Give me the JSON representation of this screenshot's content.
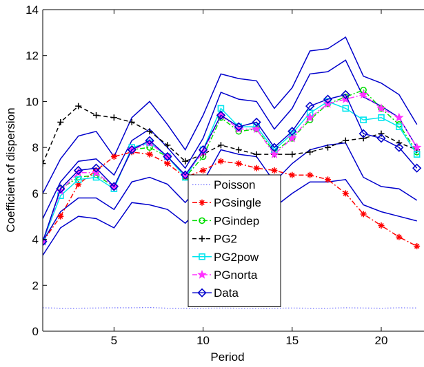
{
  "chart_data": {
    "type": "line",
    "title": "",
    "xlabel": "Period",
    "ylabel": "Coefficient of dispersion",
    "xlim": [
      1,
      22.4
    ],
    "ylim": [
      0,
      14
    ],
    "x_ticks": [
      5,
      10,
      15,
      20
    ],
    "y_ticks": [
      0,
      2,
      4,
      6,
      8,
      10,
      12,
      14
    ],
    "grid": false,
    "legend_position": "bottom-center",
    "x": [
      1,
      2,
      3,
      4,
      5,
      6,
      7,
      8,
      9,
      10,
      11,
      12,
      13,
      14,
      15,
      16,
      17,
      18,
      19,
      20,
      21,
      22
    ],
    "data_band": {
      "outer_upper": [
        6.0,
        7.5,
        8.5,
        8.7,
        7.6,
        9.3,
        10.0,
        9.0,
        7.9,
        9.4,
        11.2,
        11.0,
        10.9,
        9.7,
        10.6,
        12.2,
        12.3,
        12.8,
        11.1,
        10.8,
        10.3,
        9.0
      ],
      "inner_upper": [
        4.9,
        6.5,
        7.4,
        7.5,
        6.8,
        8.3,
        8.8,
        8.0,
        7.1,
        8.4,
        10.4,
        10.1,
        10.0,
        8.8,
        9.7,
        11.2,
        11.3,
        11.8,
        10.2,
        9.8,
        9.3,
        8.0
      ],
      "inner_lower": [
        3.9,
        5.2,
        5.8,
        5.8,
        5.3,
        6.5,
        6.7,
        6.4,
        5.6,
        6.5,
        7.9,
        7.7,
        7.6,
        6.5,
        7.3,
        7.9,
        8.1,
        8.2,
        6.7,
        6.3,
        6.2,
        5.7
      ],
      "outer_lower": [
        3.3,
        4.5,
        5.0,
        4.9,
        4.5,
        5.6,
        5.5,
        5.3,
        4.7,
        5.5,
        6.8,
        6.7,
        6.4,
        5.4,
        6.0,
        6.5,
        6.5,
        6.6,
        5.5,
        5.2,
        5.0,
        4.8
      ],
      "color": "#0000cc"
    },
    "series": [
      {
        "name": "Poisson",
        "color": "#6a6aff",
        "dash": "dotted",
        "marker": "none",
        "values": [
          1.02,
          1.0,
          1.0,
          1.01,
          1.02,
          1.02,
          1.03,
          1.0,
          1.0,
          1.0,
          1.01,
          1.0,
          1.0,
          1.0,
          1.01,
          1.0,
          1.0,
          1.02,
          1.01,
          1.0,
          1.02,
          1.01
        ]
      },
      {
        "name": "PGsingle",
        "color": "#ff0000",
        "dash": "dashdot",
        "marker": "asterisk",
        "values": [
          3.9,
          5.0,
          6.4,
          7.0,
          7.6,
          7.8,
          7.7,
          7.3,
          6.7,
          7.0,
          7.4,
          7.3,
          7.1,
          7.0,
          6.8,
          6.8,
          6.6,
          6.0,
          5.1,
          4.6,
          4.1,
          3.7
        ]
      },
      {
        "name": "PGindep",
        "color": "#00dd00",
        "dash": "dashdot",
        "marker": "circle",
        "values": [
          3.9,
          6.2,
          6.7,
          6.8,
          6.3,
          7.9,
          8.0,
          7.6,
          6.7,
          7.6,
          9.3,
          8.7,
          8.8,
          7.8,
          8.4,
          9.2,
          9.9,
          10.2,
          10.5,
          9.7,
          9.0,
          7.8
        ]
      },
      {
        "name": "PG2",
        "color": "#000000",
        "dash": "dashed",
        "marker": "plus",
        "values": [
          7.3,
          9.1,
          9.8,
          9.4,
          9.3,
          9.1,
          8.7,
          8.1,
          7.4,
          7.7,
          8.1,
          7.9,
          7.7,
          7.7,
          7.7,
          7.8,
          8.0,
          8.3,
          8.4,
          8.6,
          8.2,
          7.9
        ]
      },
      {
        "name": "PG2pow",
        "color": "#00e5ee",
        "dash": "none",
        "marker": "square",
        "values": [
          3.9,
          5.9,
          6.6,
          6.7,
          6.2,
          8.0,
          8.2,
          7.6,
          6.7,
          7.9,
          9.7,
          8.9,
          8.9,
          7.9,
          8.6,
          9.5,
          10.0,
          9.7,
          9.2,
          9.3,
          8.9,
          7.7
        ]
      },
      {
        "name": "PGnorta",
        "color": "#ff33ff",
        "dash": "dashdot",
        "marker": "star",
        "values": [
          3.9,
          6.1,
          6.9,
          6.9,
          6.3,
          7.9,
          8.2,
          7.6,
          6.8,
          7.8,
          9.4,
          8.8,
          8.8,
          7.7,
          8.4,
          9.3,
          9.9,
          10.1,
          10.3,
          9.7,
          9.3,
          8.0
        ]
      },
      {
        "name": "Data",
        "color": "#0000cc",
        "dash": "none",
        "marker": "diamond",
        "values": [
          3.9,
          6.2,
          7.0,
          7.1,
          6.3,
          7.9,
          8.3,
          7.6,
          6.8,
          7.9,
          9.4,
          8.9,
          9.1,
          8.0,
          8.7,
          9.8,
          10.1,
          10.3,
          8.6,
          8.4,
          8.0,
          7.1
        ]
      }
    ]
  }
}
